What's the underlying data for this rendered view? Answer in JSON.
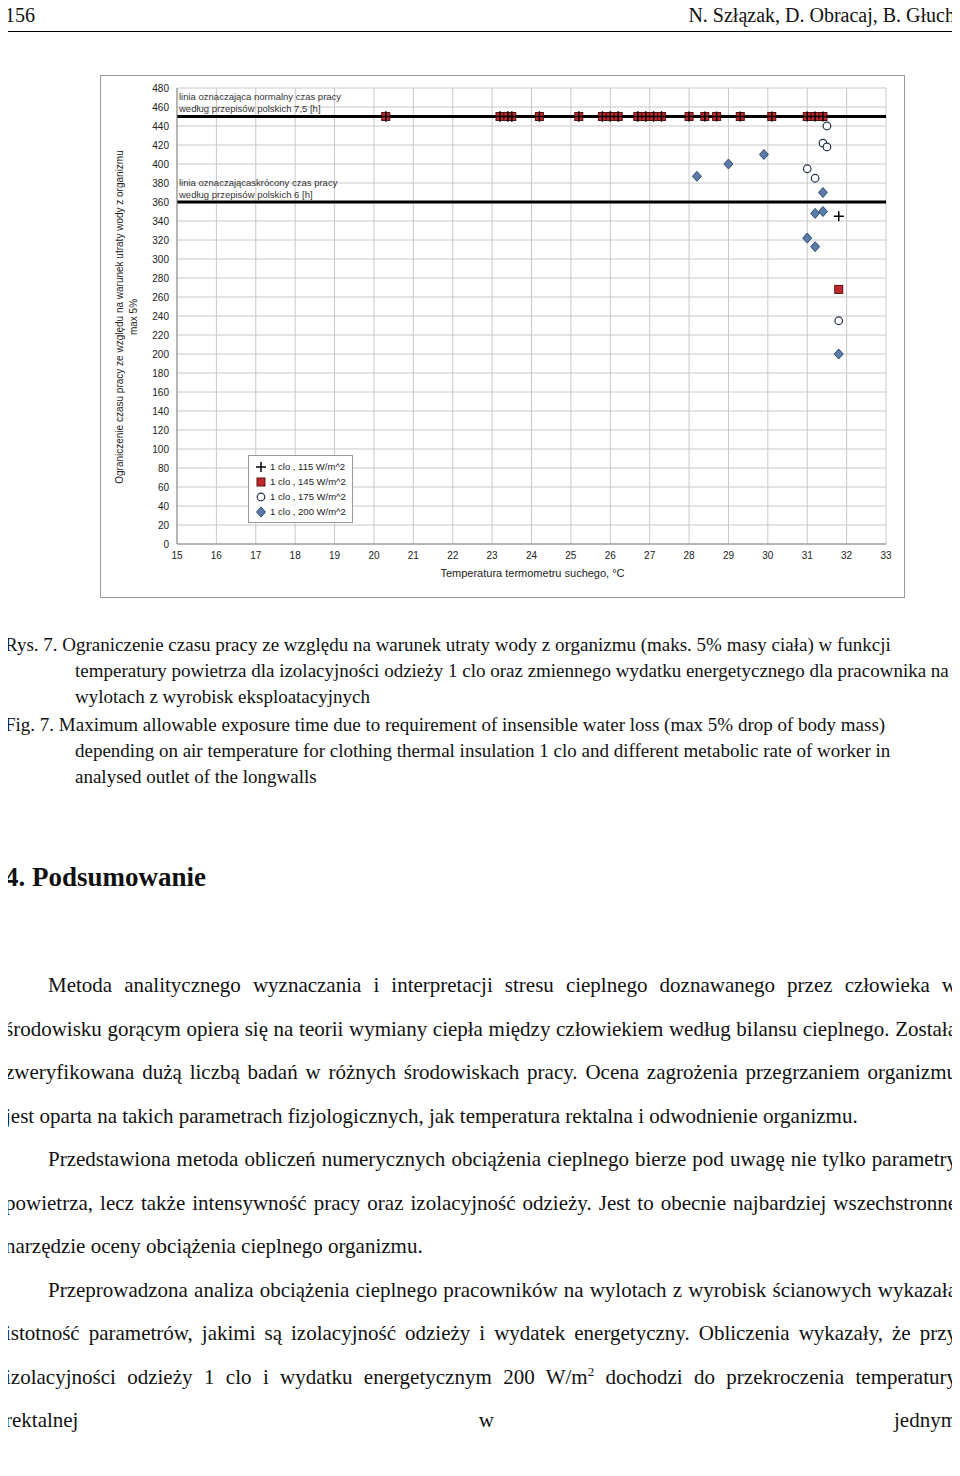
{
  "header": {
    "page": "156",
    "authors": "N. Szłązak, D. Obracaj, B. Głuch"
  },
  "chart_data": {
    "type": "scatter",
    "x_label": "Temperatura termometru suchego, °C",
    "y_label": [
      "Ograniczenie czasu pracy ze względu na warunek utraty wody z organizmu",
      "max 5%"
    ],
    "xlim": [
      15,
      33
    ],
    "xticks": [
      15,
      16,
      17,
      18,
      19,
      20,
      21,
      22,
      23,
      24,
      25,
      26,
      27,
      28,
      29,
      30,
      31,
      32,
      33
    ],
    "ylim": [
      0,
      480
    ],
    "yticks": [
      0,
      20,
      40,
      60,
      80,
      100,
      120,
      140,
      160,
      180,
      200,
      220,
      240,
      260,
      280,
      300,
      320,
      340,
      360,
      380,
      400,
      420,
      440,
      460,
      480
    ],
    "grid": true,
    "legend": "lower left",
    "annotations": [
      {
        "value": 450,
        "lines": [
          "linia oznaczająca normalny czas pracy",
          "według przepisów polskich 7,5 [h]"
        ]
      },
      {
        "value": 360,
        "lines": [
          "linia oznaczającaskrócony czas pracy",
          "według przepisów polskich 6 [h]"
        ]
      }
    ],
    "series": [
      {
        "name": "1 clo , 115 W/m^2",
        "marker": "plus",
        "color": "#000000",
        "x": [
          20.3,
          23.2,
          23.4,
          23.5,
          24.2,
          25.2,
          25.8,
          26.0,
          26.2,
          26.7,
          26.9,
          27.1,
          27.3,
          28.0,
          28.4,
          28.7,
          29.3,
          30.1,
          31.0,
          31.2,
          31.4,
          31.8
        ],
        "values": [
          450,
          450,
          450,
          450,
          450,
          450,
          450,
          450,
          450,
          450,
          450,
          450,
          450,
          450,
          450,
          450,
          450,
          450,
          450,
          450,
          450,
          345
        ]
      },
      {
        "name": "1 clo , 145 W/m^2",
        "marker": "square",
        "color": "#c0282d",
        "x": [
          20.3,
          23.2,
          23.4,
          23.5,
          24.2,
          25.2,
          25.8,
          26.0,
          26.2,
          26.7,
          26.9,
          27.1,
          27.3,
          28.0,
          28.4,
          28.7,
          29.3,
          30.1,
          31.0,
          31.2,
          31.4,
          31.8
        ],
        "values": [
          450,
          450,
          450,
          450,
          450,
          450,
          450,
          450,
          450,
          450,
          450,
          450,
          450,
          450,
          450,
          450,
          450,
          450,
          450,
          450,
          450,
          268
        ]
      },
      {
        "name": "1 clo , 175 W/m^2",
        "marker": "circle",
        "color": "#ffffff",
        "x": [
          20.3,
          23.2,
          23.4,
          23.5,
          24.2,
          25.2,
          25.8,
          26.0,
          26.2,
          26.7,
          26.9,
          27.1,
          27.3,
          28.0,
          28.4,
          28.7,
          29.3,
          30.1,
          31.5,
          31.4,
          31.5,
          31.0,
          31.2,
          31.8
        ],
        "values": [
          450,
          450,
          450,
          450,
          450,
          450,
          450,
          450,
          450,
          450,
          450,
          450,
          450,
          450,
          450,
          450,
          450,
          450,
          440,
          422,
          418,
          395,
          385,
          235
        ]
      },
      {
        "name": "1 clo , 200 W/m^2",
        "marker": "diamond",
        "color": "#5b7ca8",
        "x": [
          20.3,
          23.2,
          23.4,
          23.5,
          24.2,
          25.2,
          25.8,
          26.0,
          26.2,
          26.7,
          26.9,
          27.1,
          27.3,
          28.2,
          29.0,
          29.9,
          31.0,
          31.2,
          31.2,
          31.4,
          31.4,
          31.8
        ],
        "values": [
          450,
          450,
          450,
          450,
          450,
          450,
          450,
          450,
          450,
          450,
          450,
          450,
          450,
          387,
          400,
          410,
          322,
          313,
          348,
          350,
          370,
          200
        ]
      }
    ]
  },
  "captions": [
    {
      "label": "Rys. 7.",
      "text": "Ograniczenie czasu pracy ze względu na warunek utraty wody z organizmu (maks. 5% masy ciała) w funkcji temperatury powietrza dla izolacyjności odzieży 1 clo oraz zmiennego wydatku energetycznego dla pracownika na wylotach z wyrobisk eksploatacyjnych"
    },
    {
      "label": "Fig. 7.",
      "text": "Maximum allowable exposure time due to requirement of insensible water loss (max 5% drop of body mass) depending on air temperature for clothing thermal insulation 1 clo and different metabolic rate of worker in analysed outlet of the longwalls"
    }
  ],
  "section": {
    "title": "4. Podsumowanie",
    "paragraphs": [
      [
        {
          "text": "Metoda analitycznego wyznaczania i interpretacji stresu cieplnego doznawanego przez człowieka w środowisku gorącym opiera się na teorii wymiany ciepła między człowiekiem według bilansu cieplnego. Została zweryfikowana dużą liczbą badań w różnych środowiskach pracy. Ocena zagrożenia przegrzaniem organizmu jest oparta na takich parametrach fizjologicznych, jak temperatura rektalna i odwodnienie organizmu."
        }
      ],
      [
        {
          "text": "Przedstawiona metoda obliczeń numerycznych obciążenia cieplnego bierze pod uwagę nie tylko parametry powietrza, lecz także intensywność pracy oraz izolacyjność odzieży. Jest to obecnie najbardziej wszechstronne narzędzie oceny obciążenia cieplnego organizmu."
        }
      ],
      [
        {
          "text": "Przeprowadzona analiza obciążenia cieplnego pracowników na wylotach z wyrobisk ścianowych wykazała istotność parametrów, jakimi są izolacyjność odzieży i wydatek energetyczny. Obliczenia wykazały, że przy izolacyjności odzieży 1 clo i wydatku energetycznym 200 W/m"
        },
        {
          "sup": "2"
        },
        {
          "text": " dochodzi do przekroczenia temperatury rektalnej w jednym"
        }
      ]
    ]
  }
}
